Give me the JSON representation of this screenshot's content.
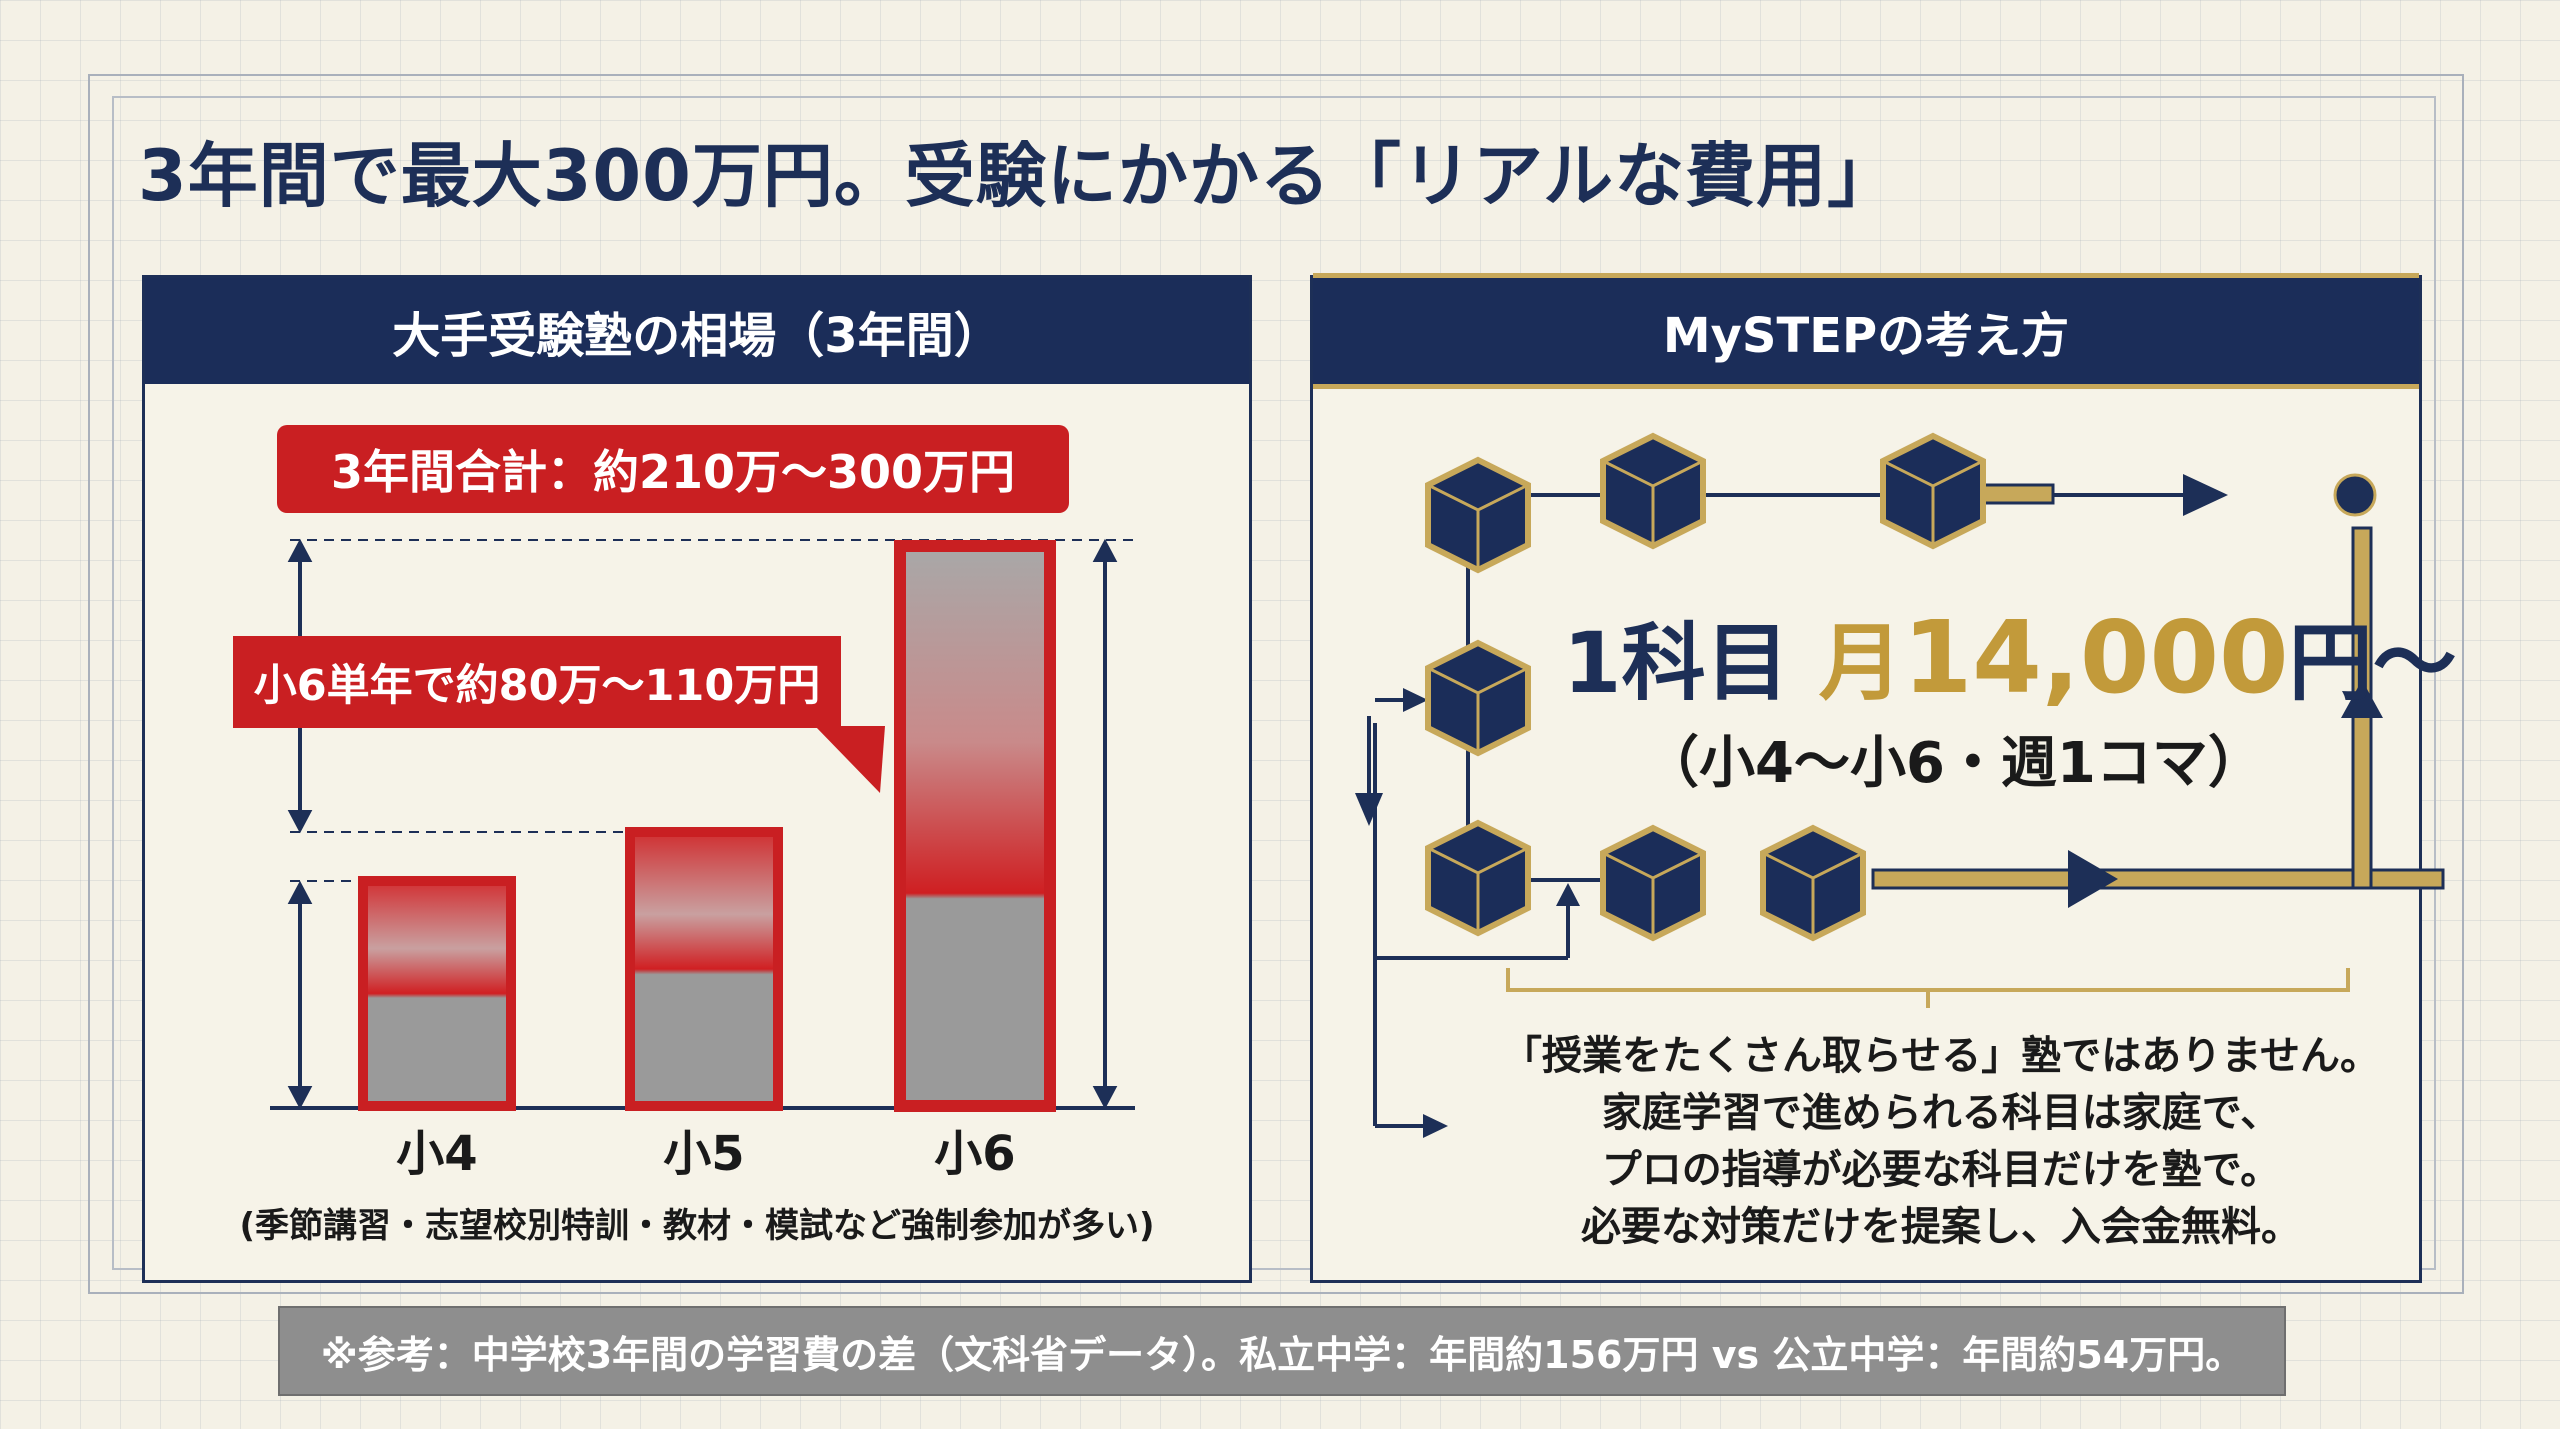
{
  "title": "3年間で最大300万円。受験にかかる「リアルな費用」",
  "left_panel": {
    "header": "大手受験塾の相場（3年間）",
    "total_label": "3年間合計：約210万〜300万円",
    "grade6_label": "小6単年で約80万〜110万円",
    "chart_data": {
      "type": "bar",
      "categories": [
        "小4",
        "小5",
        "小6"
      ],
      "relative_height": [
        0.41,
        0.5,
        1.0
      ],
      "note": "(季節講習・志望校別特訓・教材・模試など強制参加が多い)"
    },
    "colors": {
      "accent": "#c91f22",
      "bar_gray": "#9a9a9a",
      "navy": "#1b2d59"
    }
  },
  "right_panel": {
    "header": "MySTEPの考え方",
    "price_prefix": "1科目",
    "price_month": "月",
    "price_amount": "14,000",
    "price_suffix": "円〜",
    "price_sub": "（小4〜小6・週1コマ）",
    "message": [
      "「授業をたくさん取らせる」塾ではありません。",
      "家庭学習で進められる科目は家庭で、",
      "プロの指導が必要な科目だけを塾で。",
      "必要な対策だけを提案し、入会金無料。"
    ],
    "icons": [
      "cube-icon",
      "arrow-right-icon",
      "arrow-up-icon"
    ],
    "colors": {
      "gold": "#c7a85a",
      "navy": "#1b2d59"
    }
  },
  "footer": "※参考：中学校3年間の学習費の差（文科省データ）。私立中学：年間約156万円 vs 公立中学：年間約54万円。"
}
